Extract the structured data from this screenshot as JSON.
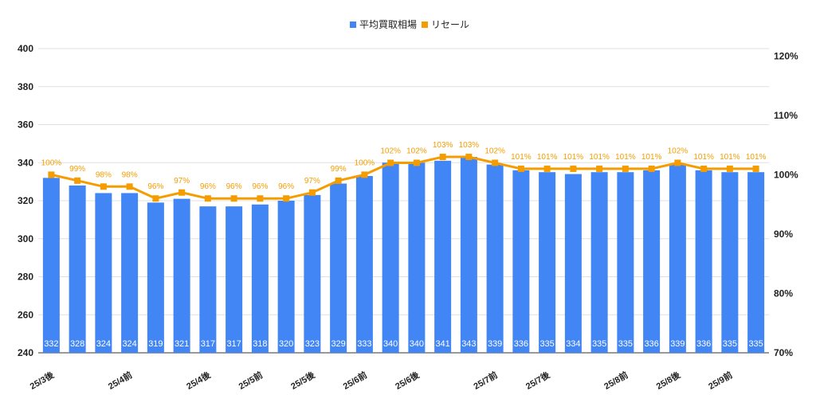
{
  "chart_data": {
    "type": "bar",
    "categories": [
      "25/3後",
      "",
      "",
      "25/4前",
      "",
      "",
      "25/4後",
      "",
      "25/5前",
      "",
      "25/5後",
      "",
      "25/6前",
      "",
      "25/6後",
      "",
      "",
      "25/7前",
      "",
      "25/7後",
      "",
      "",
      "25/8前",
      "",
      "25/8後",
      "",
      "25/9前",
      ""
    ],
    "series": [
      {
        "name": "平均買取相場",
        "type": "bar",
        "axis": "left",
        "values": [
          332,
          328,
          324,
          324,
          319,
          321,
          317,
          317,
          318,
          320,
          323,
          329,
          333,
          340,
          340,
          341,
          343,
          339,
          336,
          335,
          334,
          335,
          335,
          336,
          339,
          336,
          335,
          335
        ]
      },
      {
        "name": "リセール",
        "type": "line",
        "axis": "right",
        "values": [
          100,
          99,
          98,
          98,
          96,
          97,
          96,
          96,
          96,
          96,
          97,
          99,
          100,
          102,
          102,
          103,
          103,
          102,
          101,
          101,
          101,
          101,
          101,
          101,
          102,
          101,
          101,
          101
        ],
        "labels": [
          "100%",
          "99%",
          "98%",
          "98%",
          "96%",
          "97%",
          "96%",
          "96%",
          "96%",
          "96%",
          "97%",
          "99%",
          "100%",
          "102%",
          "102%",
          "103%",
          "103%",
          "102%",
          "101%",
          "101%",
          "101%",
          "101%",
          "101%",
          "101%",
          "102%",
          "101%",
          "101%",
          "101%"
        ]
      }
    ],
    "y_left": {
      "ylim": [
        240,
        400
      ],
      "ticks": [
        "240",
        "260",
        "280",
        "300",
        "320",
        "340",
        "360",
        "380",
        "400"
      ]
    },
    "y_right": {
      "ylim": [
        70,
        121.25
      ],
      "ticks": [
        "70%",
        "80%",
        "90%",
        "100%",
        "110%",
        "120%"
      ]
    },
    "x_tick_positions": [
      0,
      3,
      6,
      8,
      10,
      12,
      14,
      17,
      19,
      22,
      24,
      26
    ],
    "legend_position": "top-center",
    "grid": true,
    "colors": {
      "bar": "#4285f4",
      "line": "#f59d00",
      "grid": "#e0e0e0",
      "axis": "#333333"
    }
  }
}
